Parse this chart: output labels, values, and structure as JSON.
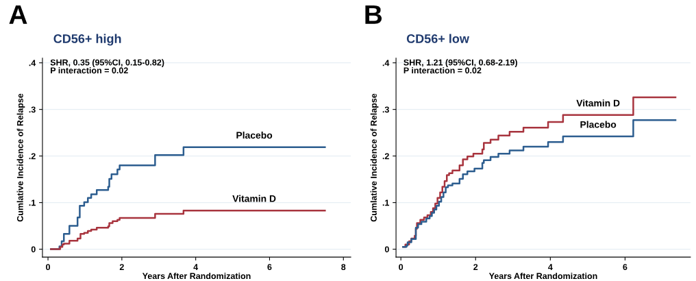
{
  "chart_data": [
    {
      "type": "step",
      "title": "CD56+ high",
      "xlabel": "Years After Randomization",
      "ylabel": "Cumlative Incidence of Relapse",
      "annotations": [
        "A",
        "SHR, 0.35 (95%CI, 0.15-0.82)\nP interaction = 0.02"
      ],
      "xlim": [
        -0.15,
        8.2
      ],
      "xticks": [
        0,
        2,
        4,
        6,
        8
      ],
      "ylim": [
        -0.017,
        0.41
      ],
      "yticks": [
        0,
        {
          "value": 0.1,
          "label": ".1"
        },
        {
          "value": 0.2,
          "label": ".2"
        },
        {
          "value": 0.3,
          "label": ".3"
        },
        {
          "value": 0.4,
          "label": ".4"
        }
      ],
      "grid": "y",
      "legend": false,
      "series": [
        {
          "name": "Placebo",
          "color": "#2c5d8f",
          "x": [
            0.08,
            0.31,
            0.37,
            0.43,
            0.58,
            0.8,
            0.86,
            0.98,
            1.08,
            1.17,
            1.32,
            1.63,
            1.66,
            1.72,
            1.88,
            1.94,
            2.9,
            3.67,
            7.5
          ],
          "values": [
            0,
            0.006,
            0.017,
            0.033,
            0.05,
            0.068,
            0.093,
            0.101,
            0.11,
            0.118,
            0.127,
            0.134,
            0.151,
            0.161,
            0.171,
            0.18,
            0.202,
            0.219,
            0.219
          ]
        },
        {
          "name": "Vitamin D",
          "color": "#a8343e",
          "x": [
            0.08,
            0.33,
            0.39,
            0.43,
            0.58,
            0.8,
            0.88,
            0.98,
            1.08,
            1.17,
            1.32,
            1.63,
            1.66,
            1.75,
            1.88,
            1.94,
            2.9,
            3.67,
            7.5
          ],
          "values": [
            0,
            0.005,
            0.01,
            0.012,
            0.018,
            0.023,
            0.033,
            0.035,
            0.039,
            0.042,
            0.046,
            0.049,
            0.056,
            0.06,
            0.063,
            0.067,
            0.076,
            0.083,
            0.083
          ]
        }
      ]
    },
    {
      "type": "step",
      "title": "CD56+ low",
      "xlabel": "Years After Randomization",
      "ylabel": "Cumlative Incidence of Relapse",
      "annotations": [
        "B",
        "SHR, 1.21 (95%CI, 0.68-2.19)\nP interaction = 0.02"
      ],
      "xlim": [
        -0.13,
        7.75
      ],
      "xticks": [
        0,
        2,
        4,
        6
      ],
      "ylim": [
        -0.017,
        0.41
      ],
      "yticks": [
        0,
        {
          "value": 0.1,
          "label": ".1"
        },
        {
          "value": 0.2,
          "label": ".2"
        },
        {
          "value": 0.3,
          "label": ".3"
        },
        {
          "value": 0.4,
          "label": ".4"
        }
      ],
      "grid": "y",
      "legend": false,
      "series": [
        {
          "name": "Vitamin D",
          "color": "#a8343e",
          "x": [
            0.06,
            0.12,
            0.22,
            0.28,
            0.37,
            0.4,
            0.43,
            0.52,
            0.62,
            0.71,
            0.8,
            0.86,
            0.92,
            0.98,
            1.05,
            1.11,
            1.17,
            1.23,
            1.29,
            1.38,
            1.57,
            1.66,
            1.78,
            1.94,
            2.18,
            2.22,
            2.4,
            2.61,
            2.91,
            3.28,
            3.94,
            4.34,
            6.22,
            7.35
          ],
          "values": [
            0.005,
            0.01,
            0.017,
            0.023,
            0.029,
            0.044,
            0.056,
            0.063,
            0.068,
            0.073,
            0.08,
            0.088,
            0.098,
            0.11,
            0.122,
            0.134,
            0.146,
            0.159,
            0.163,
            0.169,
            0.18,
            0.193,
            0.199,
            0.205,
            0.214,
            0.228,
            0.235,
            0.244,
            0.252,
            0.261,
            0.273,
            0.288,
            0.326,
            0.326
          ]
        },
        {
          "name": "Placebo",
          "color": "#2c5d8f",
          "x": [
            0.06,
            0.15,
            0.18,
            0.28,
            0.4,
            0.46,
            0.55,
            0.68,
            0.77,
            0.83,
            0.89,
            0.95,
            1.02,
            1.08,
            1.14,
            1.2,
            1.26,
            1.38,
            1.57,
            1.66,
            1.78,
            1.97,
            2.18,
            2.22,
            2.4,
            2.61,
            2.91,
            3.28,
            3.94,
            4.34,
            6.22,
            7.35
          ],
          "values": [
            0.005,
            0.008,
            0.015,
            0.022,
            0.046,
            0.054,
            0.059,
            0.066,
            0.071,
            0.078,
            0.085,
            0.093,
            0.102,
            0.112,
            0.122,
            0.133,
            0.137,
            0.141,
            0.151,
            0.161,
            0.167,
            0.173,
            0.185,
            0.191,
            0.198,
            0.205,
            0.212,
            0.22,
            0.23,
            0.242,
            0.277,
            0.277
          ]
        }
      ]
    }
  ]
}
